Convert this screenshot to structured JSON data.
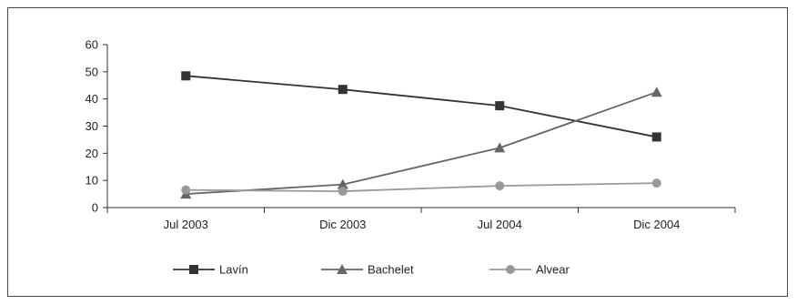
{
  "chart_data": {
    "type": "line",
    "categories": [
      "Jul 2003",
      "Dic 2003",
      "Jul 2004",
      "Dic 2004"
    ],
    "series": [
      {
        "name": "Lavín",
        "values": [
          48.5,
          43.5,
          37.5,
          26
        ],
        "color": "#333333",
        "marker": "square"
      },
      {
        "name": "Bachelet",
        "values": [
          5,
          8.5,
          22,
          42.5
        ],
        "color": "#666666",
        "marker": "triangle"
      },
      {
        "name": "Alvear",
        "values": [
          6.5,
          6,
          8,
          9
        ],
        "color": "#999999",
        "marker": "circle"
      }
    ],
    "ylim": [
      0,
      60
    ],
    "yticks": [
      0,
      10,
      20,
      30,
      40,
      50,
      60
    ],
    "grid": false,
    "legend_position": "bottom"
  }
}
